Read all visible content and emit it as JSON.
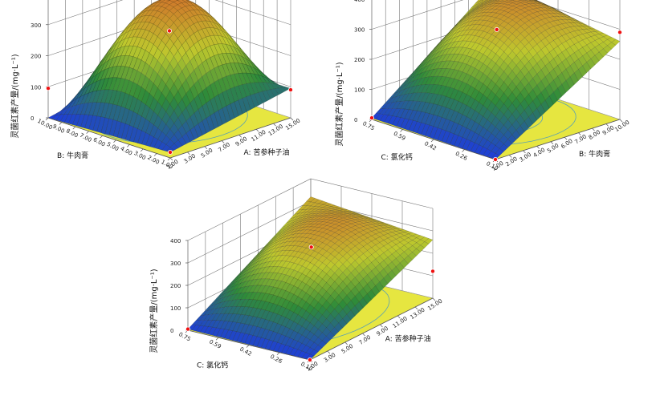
{
  "chart_data": [
    {
      "type": "surface3d",
      "title": "",
      "zlabel": "灵菌红素产量/(mg·L⁻¹)",
      "zlim": [
        0,
        400
      ],
      "zticks": [
        "0",
        "100",
        "200",
        "300",
        "400"
      ],
      "x": {
        "label": "A: 苦参种子油",
        "range": [
          1,
          15
        ],
        "ticks": [
          "1.00",
          "3.00",
          "5.00",
          "7.00",
          "9.00",
          "11.00",
          "13.00",
          "15.00"
        ]
      },
      "y": {
        "label": "B: 牛肉膏",
        "range": [
          1,
          10
        ],
        "ticks": [
          "1.00",
          "2.00",
          "3.00",
          "4.00",
          "5.00",
          "6.00",
          "7.00",
          "8.00",
          "9.00",
          "10.00"
        ]
      },
      "surface": {
        "center_value": 378,
        "corner_values": [
          18,
          95,
          80,
          0
        ]
      },
      "points": [
        {
          "x": 8,
          "y": 5.5,
          "z": 390
        },
        {
          "x": 8,
          "y": 5.5,
          "z": 280
        },
        {
          "x": 1,
          "y": 1,
          "z": 18
        },
        {
          "x": 15,
          "y": 1,
          "z": 90
        },
        {
          "x": 1,
          "y": 10,
          "z": 95
        }
      ]
    },
    {
      "type": "surface3d",
      "title": "",
      "zlabel": "灵菌红素产量/(mg·L⁻¹)",
      "zlim": [
        0,
        400
      ],
      "zticks": [
        "0",
        "100",
        "200",
        "300",
        "400"
      ],
      "x": {
        "label": "B: 牛肉膏",
        "range": [
          1,
          10
        ],
        "ticks": [
          "1.00",
          "2.00",
          "3.00",
          "4.00",
          "5.00",
          "6.00",
          "7.00",
          "8.00",
          "9.00",
          "10.00"
        ]
      },
      "y": {
        "label": "C: 氯化钙",
        "range": [
          0.1,
          0.75
        ],
        "ticks": [
          "0.10",
          "0.26",
          "0.42",
          "0.59",
          "0.75"
        ]
      },
      "surface": {
        "center_value": 320,
        "corner_values": [
          0,
          260,
          330,
          5
        ]
      },
      "points": [
        {
          "x": 5.5,
          "y": 0.42,
          "z": 300
        },
        {
          "x": 1,
          "y": 0.1,
          "z": 0
        },
        {
          "x": 10,
          "y": 0.1,
          "z": 290
        },
        {
          "x": 1,
          "y": 0.75,
          "z": 5
        }
      ]
    },
    {
      "type": "surface3d",
      "title": "",
      "zlabel": "灵菌红素产量/(mg·L⁻¹)",
      "zlim": [
        0,
        400
      ],
      "zticks": [
        "0",
        "100",
        "200",
        "300",
        "400"
      ],
      "x": {
        "label": "A: 苦参种子油",
        "range": [
          1,
          15
        ],
        "ticks": [
          "1.00",
          "3.00",
          "5.00",
          "7.00",
          "9.00",
          "11.00",
          "13.00",
          "15.00"
        ]
      },
      "y": {
        "label": "C: 氯化钙",
        "range": [
          0.1,
          0.75
        ],
        "ticks": [
          "0.10",
          "0.26",
          "0.42",
          "0.59",
          "0.75"
        ]
      },
      "surface": {
        "center_value": 315,
        "corner_values": [
          0,
          260,
          320,
          5
        ]
      },
      "points": [
        {
          "x": 8,
          "y": 0.42,
          "z": 300
        },
        {
          "x": 1,
          "y": 0.1,
          "z": 0
        },
        {
          "x": 15,
          "y": 0.1,
          "z": 120
        },
        {
          "x": 1,
          "y": 0.75,
          "z": 5
        }
      ]
    }
  ],
  "colors": {
    "floor": "#e6e640",
    "contour": "#5aa0b4",
    "grid": "#777777",
    "point": "#ee1111",
    "surface_low": "#1e3cdc",
    "surface_mid": "#2e8b3a",
    "surface_high": "#d26e2a"
  }
}
